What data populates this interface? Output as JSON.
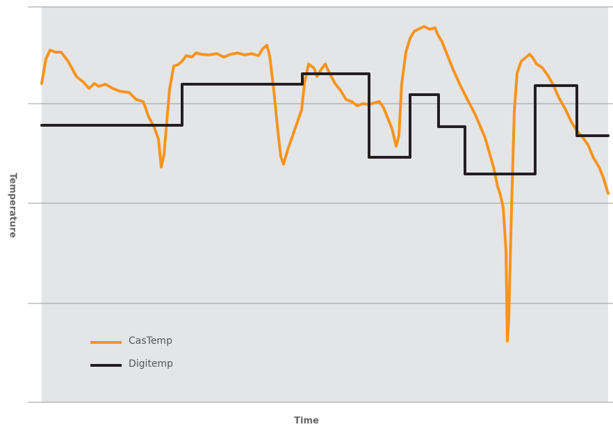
{
  "chart_data": {
    "type": "line",
    "xlabel": "Time",
    "ylabel": "Temperature",
    "xlim": [
      0,
      815
    ],
    "ylim": [
      0,
      568
    ],
    "yticks": [
      0,
      142,
      286,
      429,
      568
    ],
    "grid": true,
    "legend": "lower left",
    "series": [
      {
        "name": "CasTemp",
        "color": "#f7941d",
        "x": [
          0,
          6,
          12,
          20,
          28,
          38,
          50,
          60,
          68,
          76,
          82,
          92,
          102,
          112,
          126,
          136,
          146,
          154,
          162,
          168,
          172,
          176,
          180,
          184,
          190,
          196,
          202,
          208,
          216,
          222,
          230,
          240,
          252,
          262,
          272,
          282,
          292,
          302,
          312,
          318,
          324,
          328,
          334,
          340,
          344,
          348,
          354,
          360,
          368,
          374,
          378,
          384,
          392,
          396,
          402,
          408,
          414,
          422,
          430,
          438,
          446,
          454,
          462,
          470,
          478,
          486,
          492,
          498,
          504,
          510,
          514,
          518,
          524,
          530,
          536,
          542,
          550,
          558,
          566,
          570,
          576,
          582,
          592,
          602,
          612,
          624,
          638,
          650,
          656,
          660,
          664,
          668,
          670,
          672,
          676,
          680,
          684,
          690,
          696,
          702,
          706,
          712,
          720,
          728,
          736,
          744,
          754,
          762,
          770,
          778,
          786,
          794,
          802,
          808,
          815
        ],
        "values": [
          458,
          493,
          506,
          503,
          503,
          490,
          468,
          460,
          451,
          458,
          454,
          457,
          451,
          447,
          445,
          435,
          432,
          410,
          395,
          378,
          338,
          356,
          403,
          450,
          483,
          485,
          490,
          498,
          496,
          502,
          500,
          499,
          501,
          496,
          500,
          502,
          499,
          501,
          498,
          508,
          513,
          498,
          448,
          388,
          353,
          342,
          363,
          380,
          403,
          420,
          458,
          486,
          480,
          468,
          478,
          486,
          473,
          458,
          448,
          435,
          432,
          426,
          429,
          428,
          430,
          432,
          423,
          408,
          393,
          368,
          383,
          458,
          503,
          523,
          533,
          536,
          540,
          536,
          538,
          528,
          518,
          503,
          478,
          456,
          436,
          413,
          380,
          338,
          310,
          298,
          280,
          218,
          88,
          118,
          278,
          418,
          473,
          490,
          495,
          500,
          496,
          486,
          481,
          470,
          456,
          438,
          420,
          403,
          390,
          381,
          370,
          351,
          338,
          323,
          300
        ]
      },
      {
        "name": "Digitemp",
        "color": "#231f20",
        "x": [
          0,
          202,
          202,
          375,
          375,
          471,
          471,
          530,
          530,
          571,
          571,
          609,
          609,
          710,
          710,
          770,
          770,
          815
        ],
        "values": [
          398,
          398,
          457,
          457,
          472,
          472,
          352,
          352,
          442,
          442,
          396,
          396,
          328,
          328,
          455,
          455,
          383,
          383
        ]
      }
    ]
  }
}
